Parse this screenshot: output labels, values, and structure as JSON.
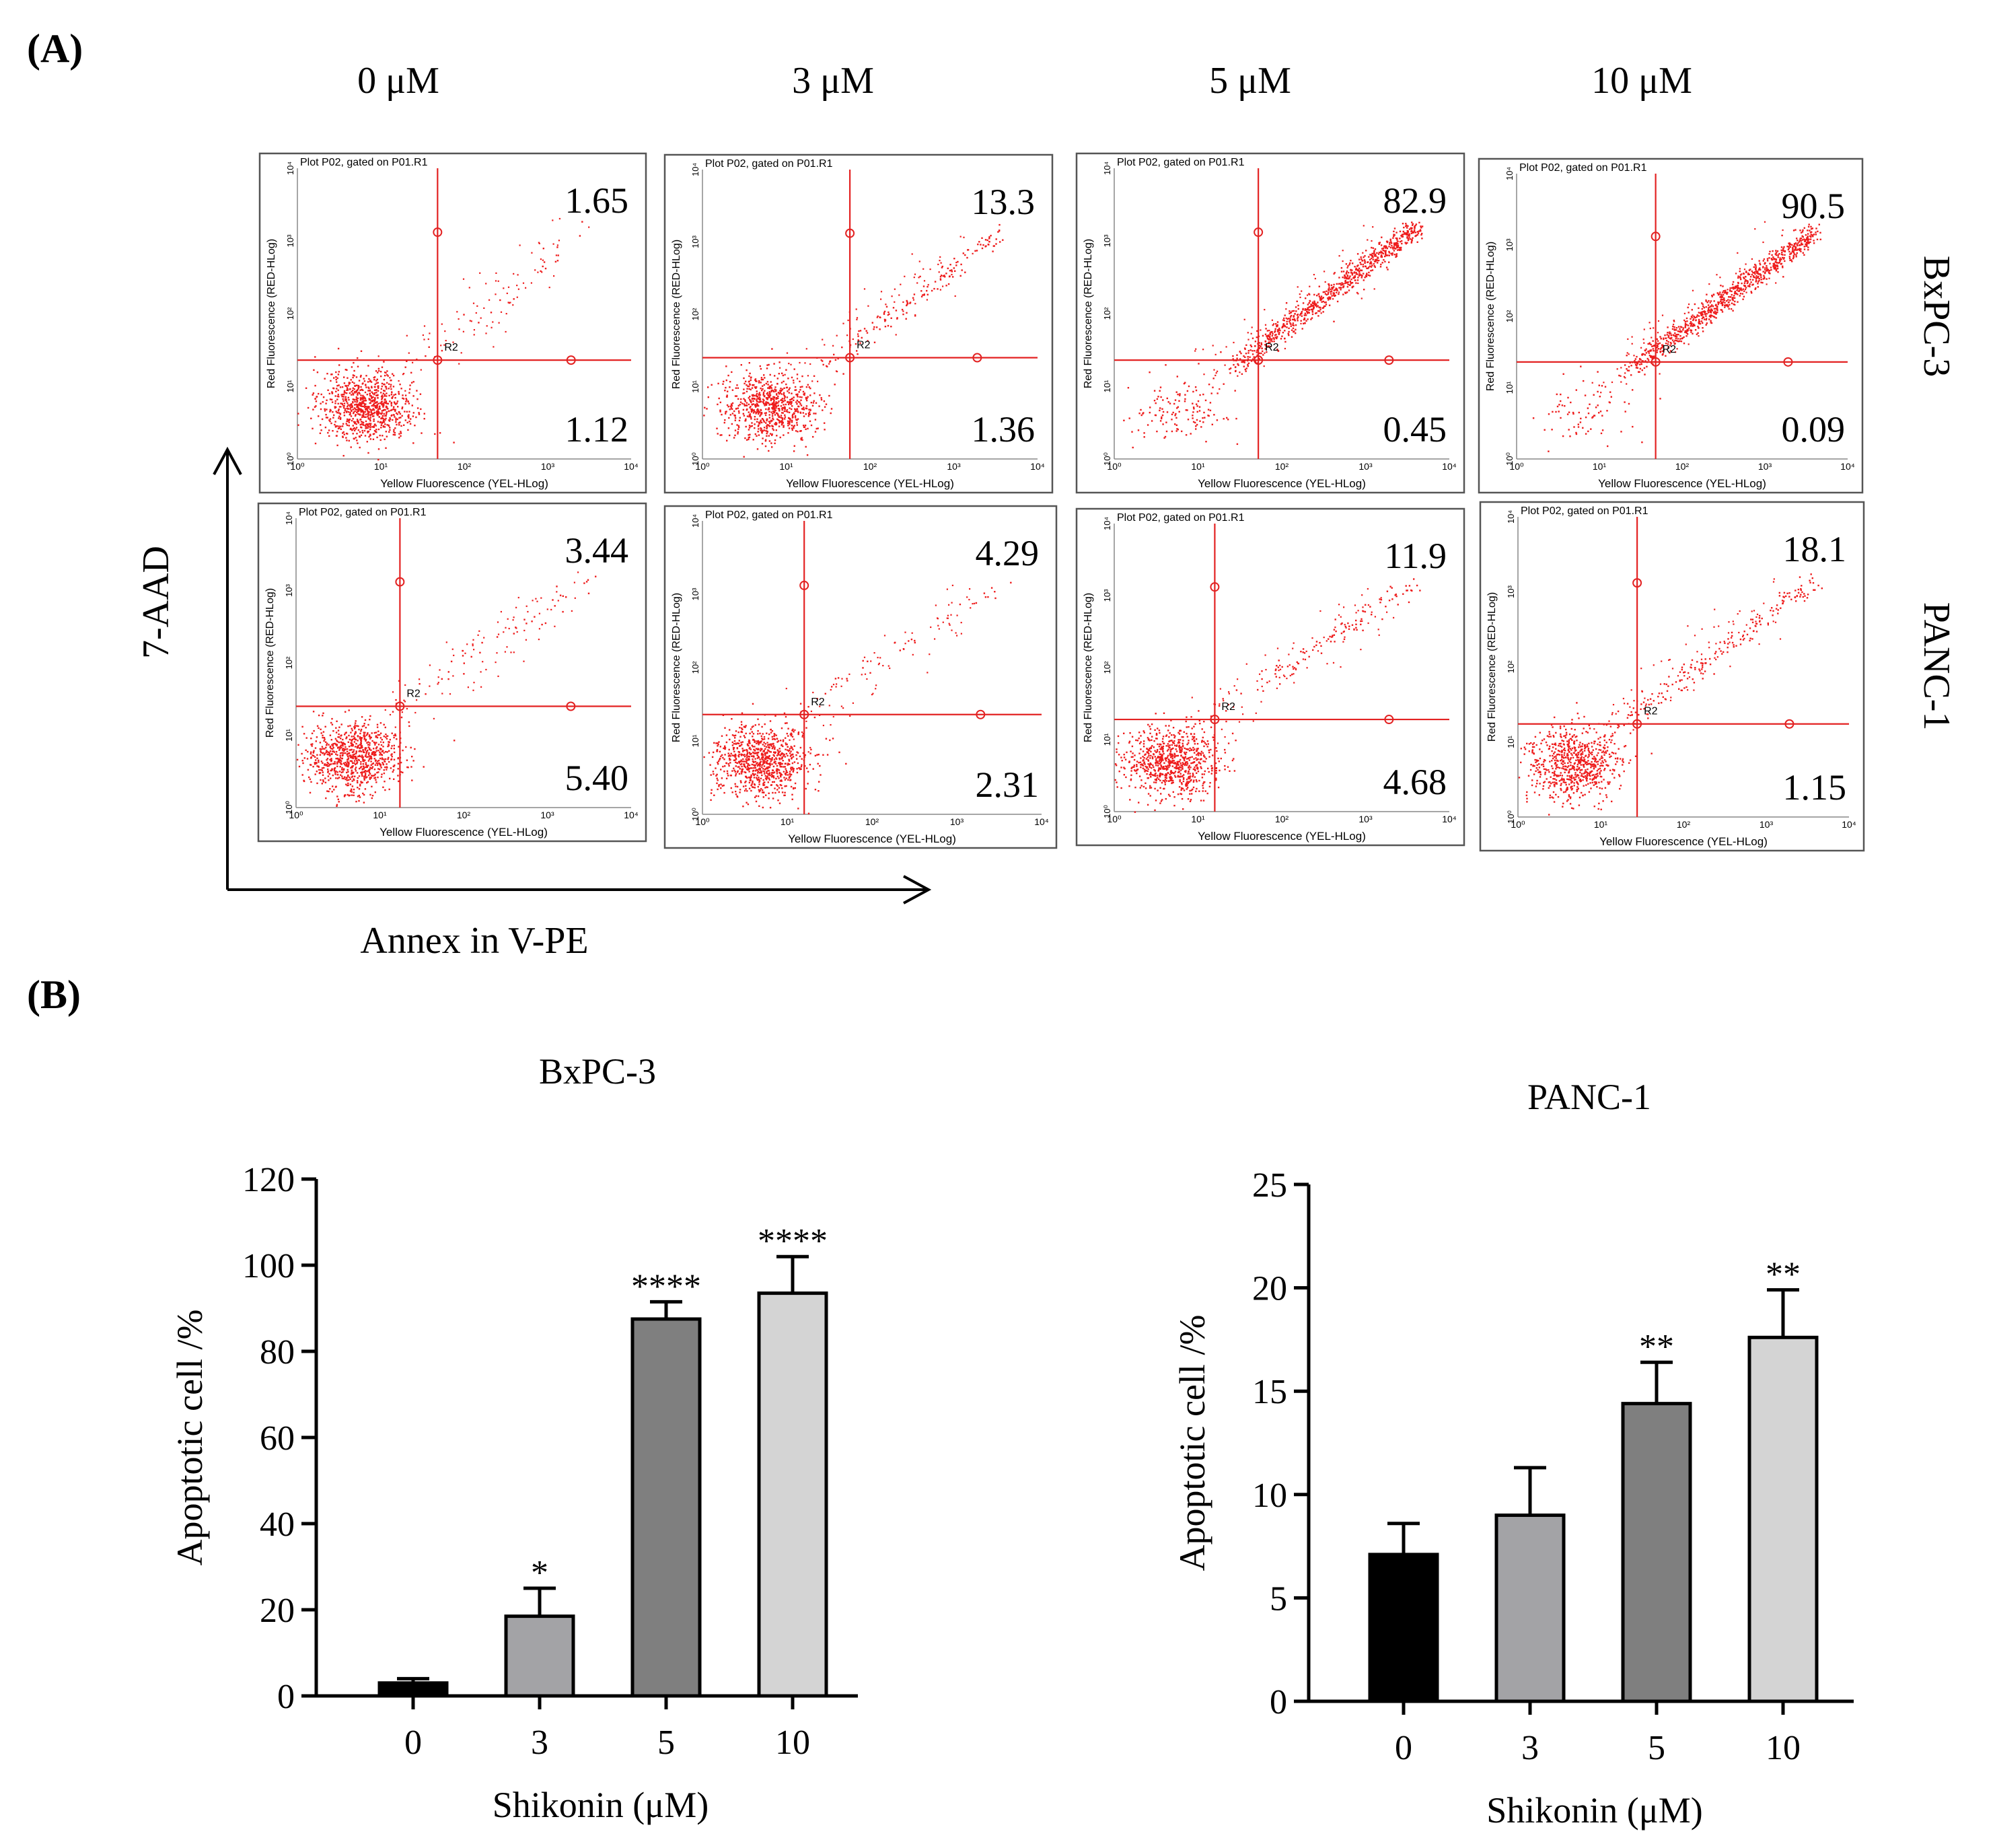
{
  "panels": {
    "a_label": "(A)",
    "b_label": "(B)"
  },
  "flow": {
    "concentrations": [
      "0 μM",
      "3 μM",
      "5 μM",
      "10 μM"
    ],
    "cell_lines": [
      "BxPC-3",
      "PANC-1"
    ],
    "y_axis_label": "7-AAD",
    "x_axis_label": "Annex in V-PE",
    "plot_header": "Plot P02, gated on P01.R1",
    "inner_x_label": "Yellow Fluorescence (YEL-HLog)",
    "inner_y_label": "Red Fluorescence (RED-HLog)",
    "gate_label": "R2",
    "ticks": [
      "10⁰",
      "10¹",
      "10²",
      "10³",
      "10⁴"
    ],
    "quadrants": [
      [
        {
          "upper": "1.65",
          "lower": "1.12"
        },
        {
          "upper": "13.3",
          "lower": "1.36"
        },
        {
          "upper": "82.9",
          "lower": "0.45"
        },
        {
          "upper": "90.5",
          "lower": "0.09"
        }
      ],
      [
        {
          "upper": "3.44",
          "lower": "5.40"
        },
        {
          "upper": "4.29",
          "lower": "2.31"
        },
        {
          "upper": "11.9",
          "lower": "4.68"
        },
        {
          "upper": "18.1",
          "lower": "1.15"
        }
      ]
    ]
  },
  "chart_data": [
    {
      "type": "bar",
      "title": "BxPC-3",
      "xlabel": "Shikonin (μM)",
      "ylabel": "Apoptotic cell /%",
      "categories": [
        "0",
        "3",
        "5",
        "10"
      ],
      "values": [
        3,
        18.5,
        87.5,
        93.5
      ],
      "errors": [
        1,
        6.5,
        4,
        8.5
      ],
      "significance": [
        "",
        "*",
        "****",
        "****"
      ],
      "ylim": [
        0,
        120
      ],
      "yticks": [
        0,
        20,
        40,
        60,
        80,
        100,
        120
      ],
      "colors": [
        "#000000",
        "#a3a3a6",
        "#7f7f7f",
        "#d4d4d4"
      ]
    },
    {
      "type": "bar",
      "title": "PANC-1",
      "xlabel": "Shikonin (μM)",
      "ylabel": "Apoptotic cell /%",
      "categories": [
        "0",
        "3",
        "5",
        "10"
      ],
      "values": [
        7.1,
        9.0,
        14.4,
        17.6
      ],
      "errors": [
        1.5,
        2.3,
        2.0,
        2.3
      ],
      "significance": [
        "",
        "",
        "**",
        "**"
      ],
      "ylim": [
        0,
        25
      ],
      "yticks": [
        0,
        5,
        10,
        15,
        20,
        25
      ],
      "colors": [
        "#000000",
        "#a3a3a6",
        "#7f7f7f",
        "#d4d4d4"
      ]
    }
  ]
}
